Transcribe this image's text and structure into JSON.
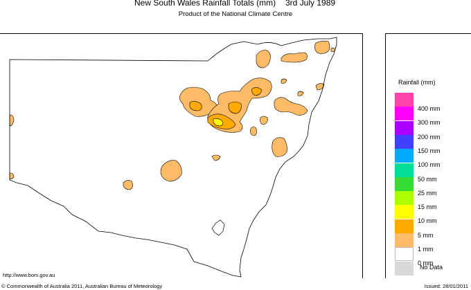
{
  "title": "New South Wales Rainfall Totals (mm)",
  "date": "3rd July 1989",
  "subtitle": "Product of the National Climate Centre",
  "legend": {
    "title": "Rainfall (mm)",
    "items": [
      {
        "label": "400 mm",
        "color": "#ff44aa"
      },
      {
        "label": "300 mm",
        "color": "#ff00ff"
      },
      {
        "label": "200 mm",
        "color": "#aa00ff"
      },
      {
        "label": "150 mm",
        "color": "#4040ff"
      },
      {
        "label": "100 mm",
        "color": "#00aaff"
      },
      {
        "label": "50 mm",
        "color": "#00dd99"
      },
      {
        "label": "25 mm",
        "color": "#33dd33"
      },
      {
        "label": "15 mm",
        "color": "#aaff00"
      },
      {
        "label": "10 mm",
        "color": "#ffff00"
      },
      {
        "label": "5 mm",
        "color": "#ffaa00"
      },
      {
        "label": "1 mm",
        "color": "#ffbb66"
      },
      {
        "label": "0 mm",
        "color": "#ffffff"
      },
      {
        "label": "No Data",
        "color": "#d8d8d8"
      }
    ]
  },
  "footer": {
    "url": "http://www.bom.gov.au",
    "copyright": "© Commonwealth of Australia 2011, Australian Bureau of Meteorology",
    "issued": "Issued: 28/01/2011"
  },
  "colors": {
    "light_rain": "#ffbb66",
    "moderate_rain": "#ffaa00",
    "heavy_rain": "#ffff00",
    "outline": "#000000"
  }
}
